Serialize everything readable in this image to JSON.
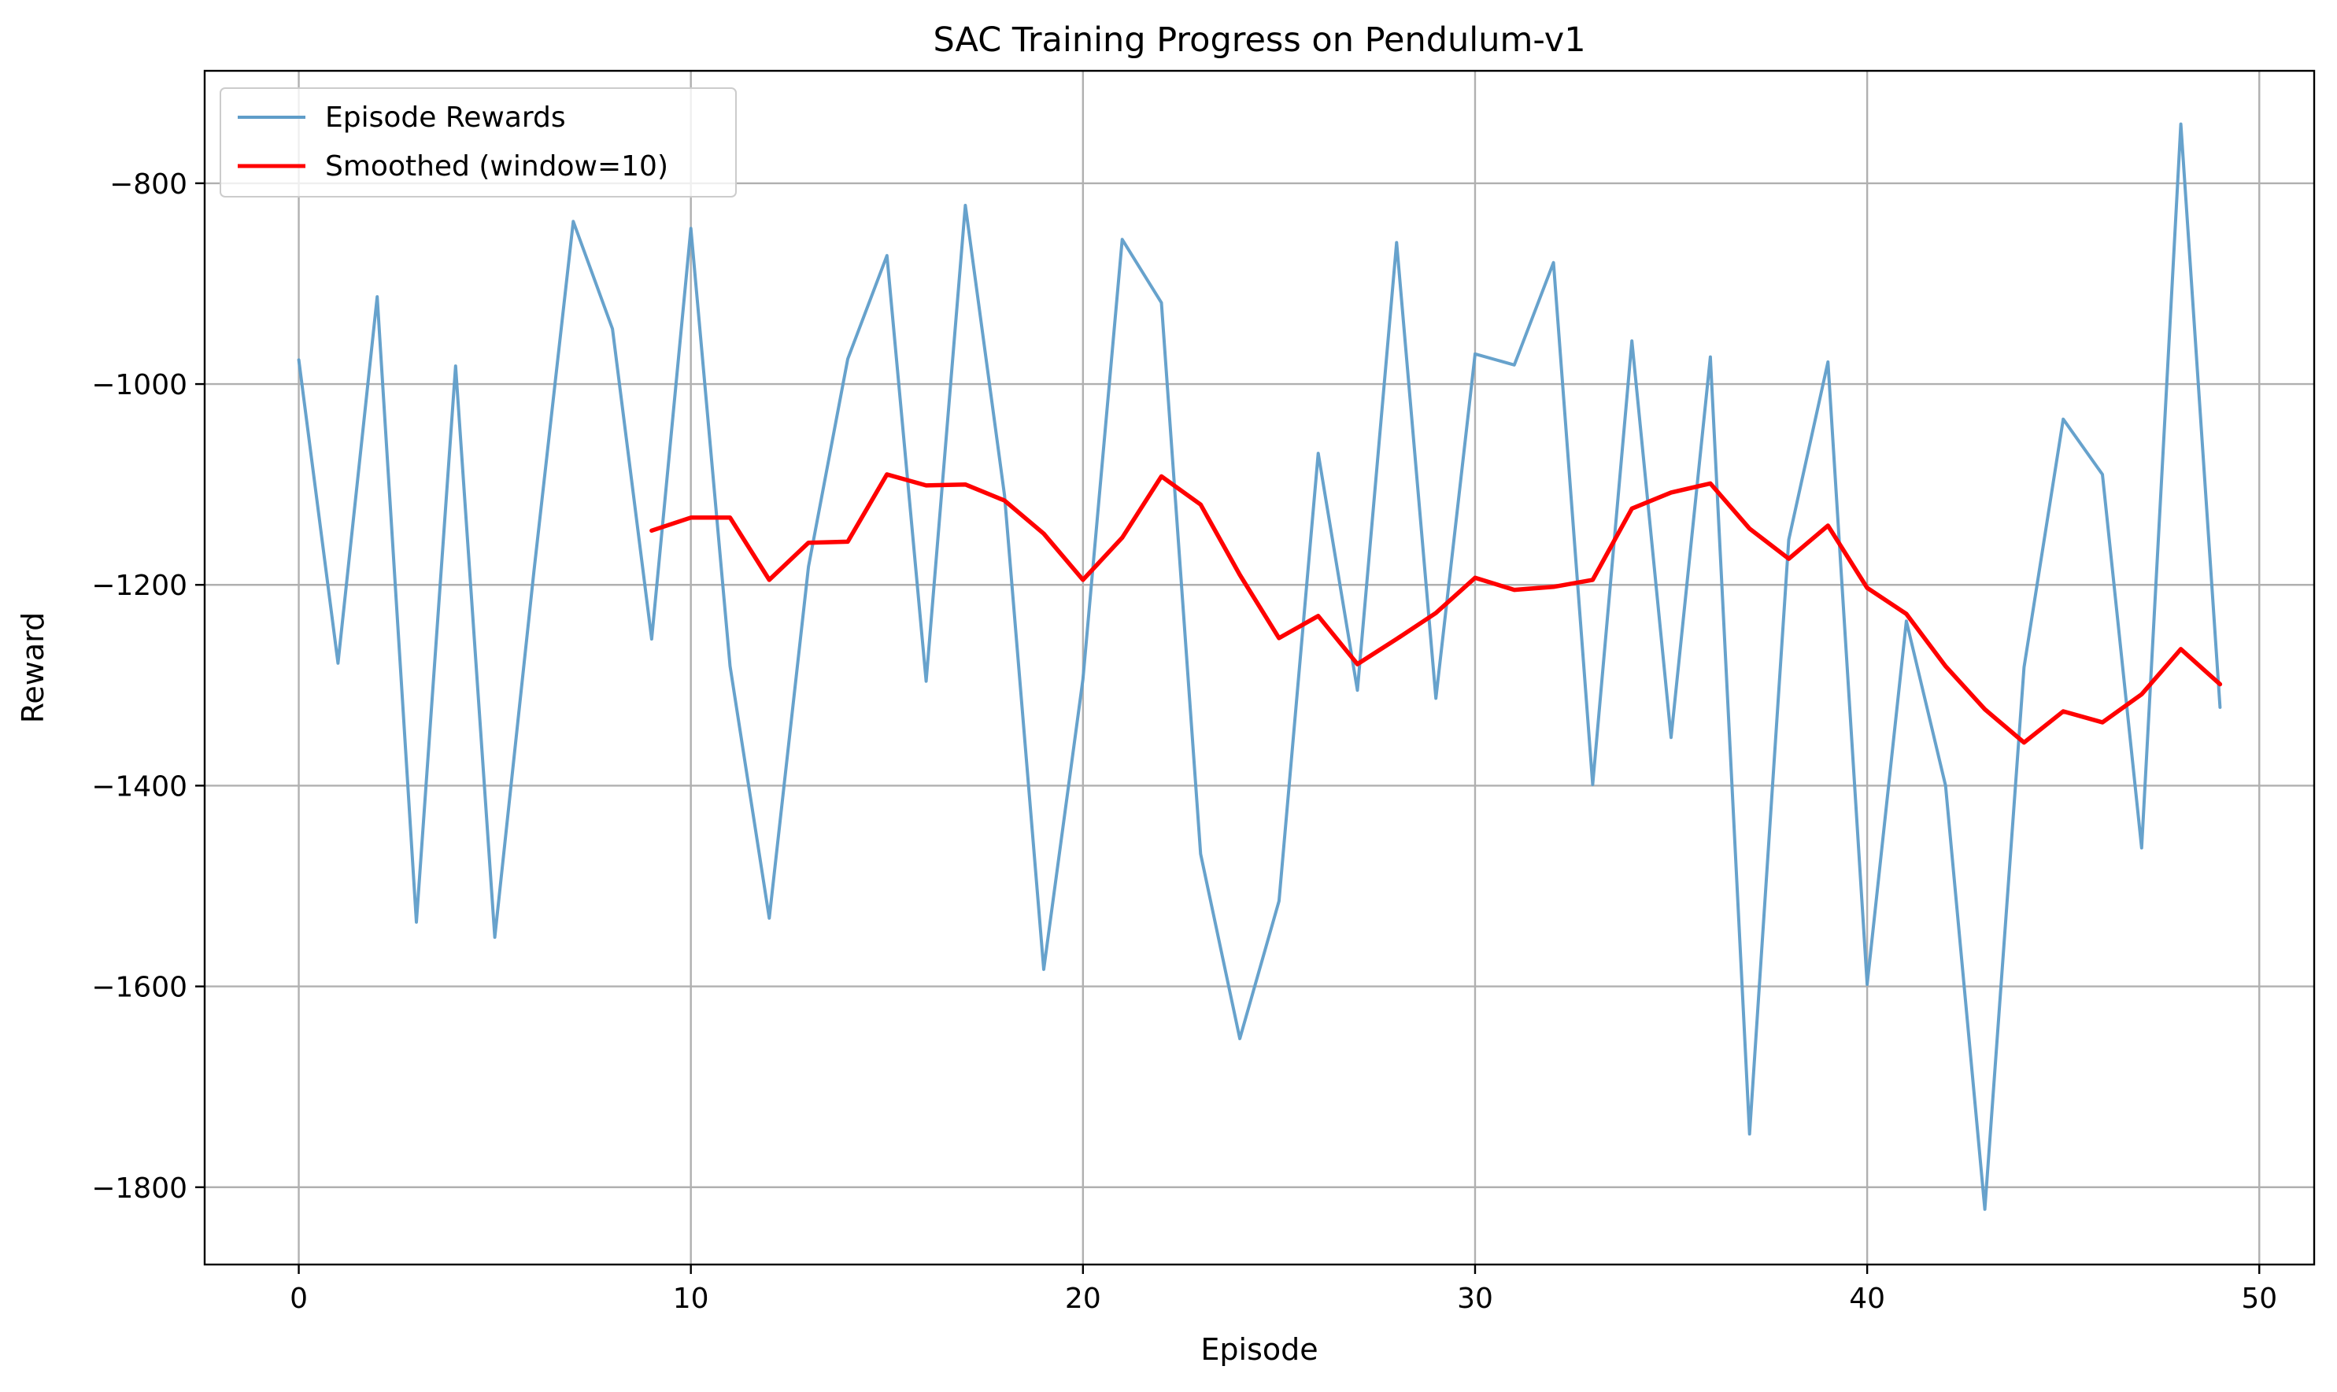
{
  "chart_data": {
    "type": "line",
    "title": "SAC Training Progress on Pendulum-v1",
    "xlabel": "Episode",
    "ylabel": "Reward",
    "xlim": [
      -2.4,
      51.4
    ],
    "ylim": [
      -1877,
      -688
    ],
    "xticks": [
      0,
      10,
      20,
      30,
      40,
      50
    ],
    "yticks": [
      -800,
      -1000,
      -1200,
      -1400,
      -1600,
      -1800
    ],
    "xtick_labels": [
      "0",
      "10",
      "20",
      "30",
      "40",
      "50"
    ],
    "ytick_labels": [
      "−800",
      "−1000",
      "−1200",
      "−1400",
      "−1600",
      "−1800"
    ],
    "grid": true,
    "legend_position": "upper-left",
    "series": [
      {
        "name": "Episode Rewards",
        "color": "#5f9dc9",
        "x": [
          0,
          1,
          2,
          3,
          4,
          5,
          6,
          7,
          8,
          9,
          10,
          11,
          12,
          13,
          14,
          15,
          16,
          17,
          18,
          19,
          20,
          21,
          22,
          23,
          24,
          25,
          26,
          27,
          28,
          29,
          30,
          31,
          32,
          33,
          34,
          35,
          36,
          37,
          38,
          39,
          40,
          41,
          42,
          43,
          44,
          45,
          46,
          47,
          48,
          49
        ],
        "y": [
          -976,
          -1278,
          -913,
          -1536,
          -982,
          -1551,
          -1186,
          -838,
          -945,
          -1254,
          -845,
          -1281,
          -1532,
          -1182,
          -975,
          -872,
          -1296,
          -822,
          -1111,
          -1583,
          -1294,
          -856,
          -919,
          -1468,
          -1652,
          -1515,
          -1069,
          -1305,
          -859,
          -1313,
          -970,
          -981,
          -879,
          -1399,
          -957,
          -1352,
          -973,
          -1747,
          -1155,
          -978,
          -1598,
          -1236,
          -1400,
          -1822,
          -1282,
          -1035,
          -1090,
          -1462,
          -741,
          -1322
        ]
      },
      {
        "name": "Smoothed (window=10)",
        "color": "#ff0000",
        "x": [
          9,
          10,
          11,
          12,
          13,
          14,
          15,
          16,
          17,
          18,
          19,
          20,
          21,
          22,
          23,
          24,
          25,
          26,
          27,
          28,
          29,
          30,
          31,
          32,
          33,
          34,
          35,
          36,
          37,
          38,
          39,
          40,
          41,
          42,
          43,
          44,
          45,
          46,
          47,
          48,
          49
        ],
        "y": [
          -1146,
          -1133,
          -1133,
          -1195,
          -1158,
          -1157,
          -1090,
          -1101,
          -1100,
          -1116,
          -1149,
          -1195,
          -1153,
          -1092,
          -1120,
          -1190,
          -1253,
          -1231,
          -1279,
          -1254,
          -1228,
          -1193,
          -1205,
          -1202,
          -1195,
          -1124,
          -1108,
          -1099,
          -1144,
          -1174,
          -1141,
          -1203,
          -1229,
          -1281,
          -1324,
          -1357,
          -1326,
          -1337,
          -1309,
          -1264,
          -1299
        ]
      }
    ]
  }
}
